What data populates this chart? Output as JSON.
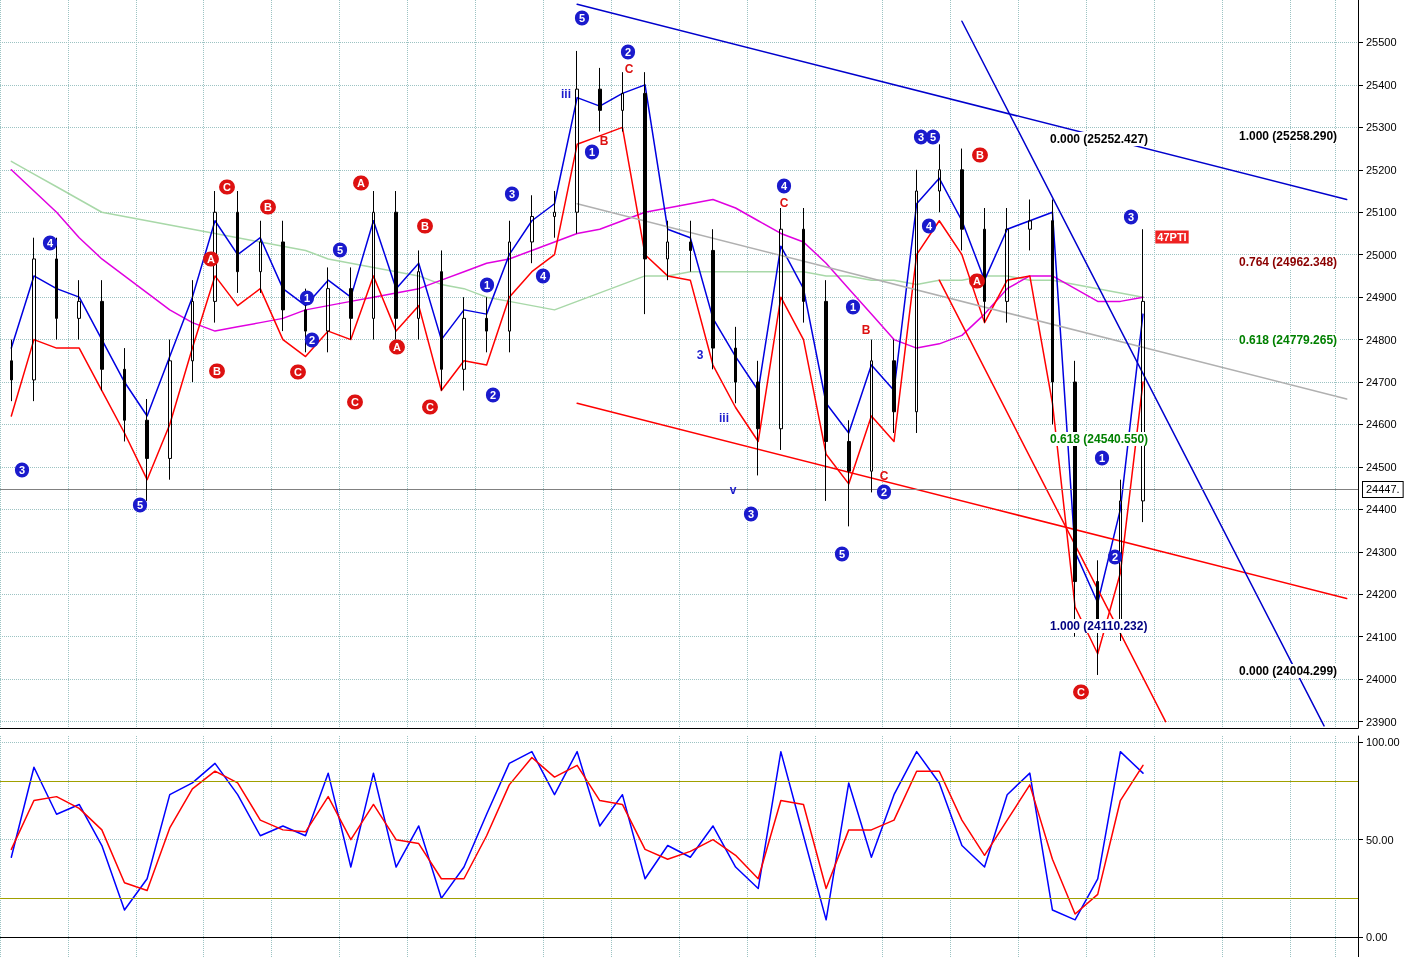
{
  "chart_data": [
    {
      "type": "candlestick",
      "color": "#000000",
      "categories": [
        null,
        null,
        null,
        null,
        null,
        null,
        null,
        null,
        null,
        null,
        null,
        null,
        null,
        null,
        null,
        null,
        null,
        null,
        null,
        null,
        null,
        null,
        null,
        null,
        null,
        null,
        null,
        null,
        null,
        null,
        null,
        null,
        null,
        null,
        null,
        null,
        null,
        null,
        null,
        null,
        null,
        null,
        null,
        null,
        null,
        null,
        null,
        null,
        null,
        null,
        null,
        null,
        null,
        null,
        null,
        null,
        null,
        null,
        null,
        null
      ],
      "ohlc": [
        [
          24750,
          24800,
          24655,
          24705
        ],
        [
          24705,
          25040,
          24655,
          24990
        ],
        [
          24990,
          25040,
          24800,
          24850
        ],
        [
          24850,
          24940,
          24800,
          24890
        ],
        [
          24890,
          24940,
          24680,
          24730
        ],
        [
          24730,
          24780,
          24560,
          24610
        ],
        [
          24610,
          24660,
          24420,
          24520
        ],
        [
          24520,
          24800,
          24470,
          24750
        ],
        [
          24750,
          24940,
          24700,
          24890
        ],
        [
          24890,
          25150,
          24840,
          25100
        ],
        [
          25100,
          25150,
          24910,
          24960
        ],
        [
          24960,
          25080,
          24910,
          25030
        ],
        [
          25030,
          25080,
          24820,
          24870
        ],
        [
          24870,
          24920,
          24770,
          24820
        ],
        [
          24820,
          24970,
          24770,
          24920
        ],
        [
          24920,
          24970,
          24800,
          24850
        ],
        [
          24850,
          25150,
          24800,
          25100
        ],
        [
          25100,
          25150,
          24800,
          24850
        ],
        [
          24850,
          25010,
          24800,
          24960
        ],
        [
          24960,
          25010,
          24680,
          24730
        ],
        [
          24730,
          24900,
          24680,
          24850
        ],
        [
          24850,
          24900,
          24770,
          24820
        ],
        [
          24820,
          25080,
          24770,
          25030
        ],
        [
          25030,
          25140,
          24980,
          25090
        ],
        [
          25090,
          25150,
          25040,
          25100
        ],
        [
          25100,
          25480,
          25050,
          25390
        ],
        [
          25390,
          25440,
          25290,
          25340
        ],
        [
          25340,
          25430,
          25290,
          25380
        ],
        [
          25380,
          25430,
          24860,
          24990
        ],
        [
          24990,
          25080,
          24940,
          25030
        ],
        [
          25030,
          25080,
          24960,
          25010
        ],
        [
          25010,
          25060,
          24730,
          24780
        ],
        [
          24780,
          24830,
          24650,
          24700
        ],
        [
          24700,
          24750,
          24480,
          24590
        ],
        [
          24590,
          25110,
          24540,
          25060
        ],
        [
          25060,
          25110,
          24840,
          24890
        ],
        [
          24890,
          24940,
          24420,
          24560
        ],
        [
          24560,
          24610,
          24360,
          24490
        ],
        [
          24490,
          24800,
          24440,
          24750
        ],
        [
          24750,
          24800,
          24580,
          24630
        ],
        [
          24630,
          25200,
          24580,
          25150
        ],
        [
          25150,
          25260,
          25100,
          25200
        ],
        [
          25200,
          25250,
          25010,
          25060
        ],
        [
          25060,
          25110,
          24840,
          24890
        ],
        [
          24890,
          25110,
          24840,
          25060
        ],
        [
          25060,
          25130,
          25010,
          25080
        ],
        [
          25080,
          25130,
          24600,
          24700
        ],
        [
          24700,
          24750,
          24100,
          24230
        ],
        [
          24230,
          24280,
          24010,
          24140
        ],
        [
          24140,
          24470,
          24090,
          24420
        ],
        [
          24420,
          25060,
          24370,
          24890
        ],
        null,
        null,
        null,
        null,
        null,
        null,
        null,
        null,
        null
      ],
      "series": [
        {
          "type": "line",
          "color": "#a8d8a8",
          "values": [
            25220,
            25190,
            25160,
            25130,
            25100,
            25090,
            25080,
            25070,
            25060,
            25050,
            25040,
            25030,
            25020,
            25010,
            24990,
            24980,
            24970,
            24960,
            24950,
            24930,
            24920,
            24900,
            24890,
            24880,
            24870,
            24890,
            24910,
            24930,
            24950,
            24950,
            24960,
            24960,
            24960,
            24960,
            24960,
            24960,
            24950,
            24950,
            24940,
            24940,
            24930,
            24940,
            24940,
            24950,
            24950,
            24940,
            24940,
            24930,
            24920,
            24910,
            24900,
            null,
            null,
            null,
            null,
            null,
            null,
            null,
            null,
            null
          ]
        },
        {
          "type": "line",
          "color": "#e000e0",
          "values": [
            25200,
            25150,
            25100,
            25040,
            24990,
            24950,
            24910,
            24870,
            24840,
            24820,
            24830,
            24840,
            24850,
            24870,
            24880,
            24890,
            24900,
            24910,
            24920,
            24940,
            24960,
            24980,
            24990,
            25010,
            25030,
            25050,
            25060,
            25080,
            25100,
            25110,
            25120,
            25130,
            25110,
            25080,
            25050,
            25030,
            24980,
            24920,
            24860,
            24800,
            24780,
            24790,
            24810,
            24860,
            24920,
            24950,
            24950,
            24920,
            24890,
            24890,
            24900,
            null,
            null,
            null,
            null,
            null,
            null,
            null,
            null,
            null
          ]
        },
        {
          "type": "line",
          "color": "#0000e0",
          "values": [
            24780,
            24950,
            24920,
            24900,
            24800,
            24700,
            24620,
            24760,
            24900,
            25080,
            25000,
            25040,
            24920,
            24880,
            24940,
            24900,
            25080,
            24920,
            24980,
            24800,
            24870,
            24860,
            25000,
            25080,
            25120,
            25370,
            25350,
            25380,
            25400,
            25060,
            25040,
            24850,
            24760,
            24680,
            25020,
            24920,
            24650,
            24580,
            24740,
            24680,
            25120,
            25180,
            25080,
            24940,
            25060,
            25080,
            25100,
            24300,
            24180,
            24400,
            24860,
            null,
            null,
            null,
            null,
            null,
            null,
            null,
            null,
            null
          ]
        },
        {
          "type": "line",
          "color": "#ff0000",
          "values": [
            24620,
            24800,
            24780,
            24780,
            24680,
            24580,
            24470,
            24600,
            24780,
            24950,
            24880,
            24920,
            24800,
            24760,
            24820,
            24800,
            24950,
            24820,
            24880,
            24680,
            24750,
            24740,
            24900,
            24960,
            25000,
            25260,
            25280,
            25300,
            25000,
            24950,
            24940,
            24740,
            24640,
            24560,
            24900,
            24800,
            24530,
            24460,
            24620,
            24560,
            25000,
            25080,
            25000,
            24840,
            24940,
            24950,
            24650,
            24170,
            24060,
            24250,
            24700,
            null,
            null,
            null,
            null,
            null,
            null,
            null,
            null,
            null
          ]
        },
        {
          "type": "line",
          "color": "#0000cc",
          "values": [
            null,
            null,
            null,
            null,
            null,
            null,
            null,
            null,
            null,
            null,
            null,
            null,
            null,
            null,
            null,
            null,
            null,
            null,
            null,
            null,
            null,
            null,
            null,
            null,
            null,
            25590,
            null,
            null,
            null,
            null,
            null,
            null,
            null,
            null,
            null,
            null,
            null,
            null,
            null,
            null,
            null,
            null,
            null,
            null,
            null,
            null,
            null,
            null,
            null,
            null,
            null,
            null,
            null,
            null,
            null,
            null,
            null,
            null,
            null,
            25130
          ]
        },
        {
          "type": "line",
          "color": "#ff0000",
          "values": [
            null,
            null,
            null,
            null,
            null,
            null,
            null,
            null,
            null,
            null,
            null,
            null,
            null,
            null,
            null,
            null,
            null,
            null,
            null,
            null,
            null,
            null,
            null,
            null,
            null,
            24650,
            null,
            null,
            null,
            null,
            null,
            null,
            null,
            null,
            null,
            null,
            null,
            null,
            null,
            null,
            null,
            null,
            null,
            null,
            null,
            null,
            null,
            null,
            null,
            null,
            null,
            null,
            null,
            null,
            null,
            null,
            null,
            null,
            null,
            24190
          ]
        },
        {
          "type": "line",
          "color": "#b0b0b0",
          "values": [
            null,
            null,
            null,
            null,
            null,
            null,
            null,
            null,
            null,
            null,
            null,
            null,
            null,
            null,
            null,
            null,
            null,
            null,
            null,
            null,
            null,
            null,
            null,
            null,
            null,
            25120,
            null,
            null,
            null,
            null,
            null,
            null,
            null,
            null,
            null,
            null,
            null,
            null,
            null,
            null,
            null,
            null,
            null,
            null,
            null,
            null,
            null,
            null,
            null,
            null,
            null,
            null,
            null,
            null,
            null,
            null,
            null,
            null,
            null,
            24660
          ]
        },
        {
          "type": "line",
          "color": "#0000cc",
          "values": [
            null,
            null,
            null,
            null,
            null,
            null,
            null,
            null,
            null,
            null,
            null,
            null,
            null,
            null,
            null,
            null,
            null,
            null,
            null,
            null,
            null,
            null,
            null,
            null,
            null,
            null,
            null,
            null,
            null,
            null,
            null,
            null,
            null,
            null,
            null,
            null,
            null,
            null,
            null,
            null,
            null,
            null,
            25550,
            null,
            null,
            null,
            null,
            null,
            null,
            null,
            null,
            null,
            null,
            null,
            null,
            null,
            null,
            null,
            23890,
            null
          ]
        },
        {
          "type": "line",
          "color": "#ff0000",
          "values": [
            null,
            null,
            null,
            null,
            null,
            null,
            null,
            null,
            null,
            null,
            null,
            null,
            null,
            null,
            null,
            null,
            null,
            null,
            null,
            null,
            null,
            null,
            null,
            null,
            null,
            null,
            null,
            null,
            null,
            null,
            null,
            null,
            null,
            null,
            null,
            null,
            null,
            null,
            null,
            null,
            null,
            24940,
            null,
            null,
            null,
            null,
            null,
            null,
            null,
            null,
            null,
            23900,
            null,
            null,
            null,
            null,
            null,
            null,
            null,
            null
          ]
        }
      ],
      "ylim": [
        23885,
        25600
      ],
      "yticks": [
        23900,
        24000,
        24100,
        24200,
        24300,
        24400,
        24500,
        24600,
        24700,
        24800,
        24900,
        25000,
        25100,
        25200,
        25300,
        25400,
        25500
      ],
      "ref_lines": [
        {
          "axis": "y",
          "value": 24447,
          "label": "24447.",
          "color": "#808080"
        }
      ],
      "annotations": [
        "0.000 (25252.427)",
        "1.000 (25258.290)",
        "0.764 (24962.348)",
        "0.618 (24779.265)",
        "0.618 (24540.550)",
        "1.000 (24110.232)",
        "0.000 (24004.299)",
        "4",
        "3",
        "5",
        "C",
        "B",
        "A",
        "B",
        "C",
        "1",
        "2",
        "5",
        "A",
        "C",
        "B",
        "A",
        "C",
        "1",
        "2",
        "3",
        "4",
        "5",
        "2",
        "1",
        "C",
        "B",
        "4",
        "C",
        "3",
        "5",
        "1",
        "2",
        "3",
        "5",
        "4",
        "B",
        "A",
        "C",
        "1",
        "2",
        "3",
        "47PTI",
        "iii",
        "3",
        "iii",
        "v",
        "C",
        "B"
      ],
      "grid": true,
      "tick_labels": "y",
      "marker": "none"
    },
    {
      "type": "line",
      "categories": [
        null,
        null,
        null,
        null,
        null,
        null,
        null,
        null,
        null,
        null,
        null,
        null,
        null,
        null,
        null,
        null,
        null,
        null,
        null,
        null,
        null,
        null,
        null,
        null,
        null,
        null,
        null,
        null,
        null,
        null,
        null,
        null,
        null,
        null,
        null,
        null,
        null,
        null,
        null,
        null,
        null,
        null,
        null,
        null,
        null,
        null,
        null,
        null,
        null,
        null,
        null,
        null,
        null,
        null,
        null,
        null,
        null,
        null,
        null,
        null
      ],
      "series": [
        {
          "color": "#0000ff",
          "values": [
            41,
            87,
            63,
            68,
            47,
            14,
            30,
            73,
            79,
            89,
            73,
            52,
            57,
            52,
            84,
            36,
            84,
            36,
            57,
            20,
            36,
            63,
            89,
            95,
            73,
            95,
            57,
            73,
            30,
            47,
            41,
            57,
            36,
            25,
            95,
            52,
            9,
            79,
            41,
            73,
            95,
            79,
            47,
            36,
            73,
            84,
            14,
            9,
            30,
            95,
            84,
            null,
            null,
            null,
            null,
            null,
            null,
            null,
            null,
            null
          ]
        },
        {
          "color": "#ff0000",
          "values": [
            45,
            70,
            72,
            66,
            55,
            28,
            24,
            56,
            76,
            85,
            79,
            60,
            55,
            54,
            72,
            50,
            68,
            50,
            48,
            30,
            30,
            52,
            78,
            92,
            82,
            88,
            70,
            68,
            45,
            40,
            44,
            50,
            42,
            30,
            70,
            68,
            25,
            55,
            55,
            60,
            85,
            85,
            60,
            42,
            60,
            78,
            40,
            12,
            22,
            70,
            88,
            null,
            null,
            null,
            null,
            null,
            null,
            null,
            null,
            null
          ]
        }
      ],
      "ylim": [
        -10,
        103
      ],
      "yticks": [
        {
          "value": 0,
          "label": "0.00"
        },
        {
          "value": 50,
          "label": "50.00"
        },
        {
          "value": 100,
          "label": "100.00"
        }
      ],
      "ref_lines": [
        {
          "axis": "y",
          "value": 80,
          "color": "#a0a000"
        },
        {
          "axis": "y",
          "value": 20,
          "color": "#a0a000"
        }
      ],
      "grid": true,
      "tick_labels": "y",
      "marker": "none"
    }
  ]
}
